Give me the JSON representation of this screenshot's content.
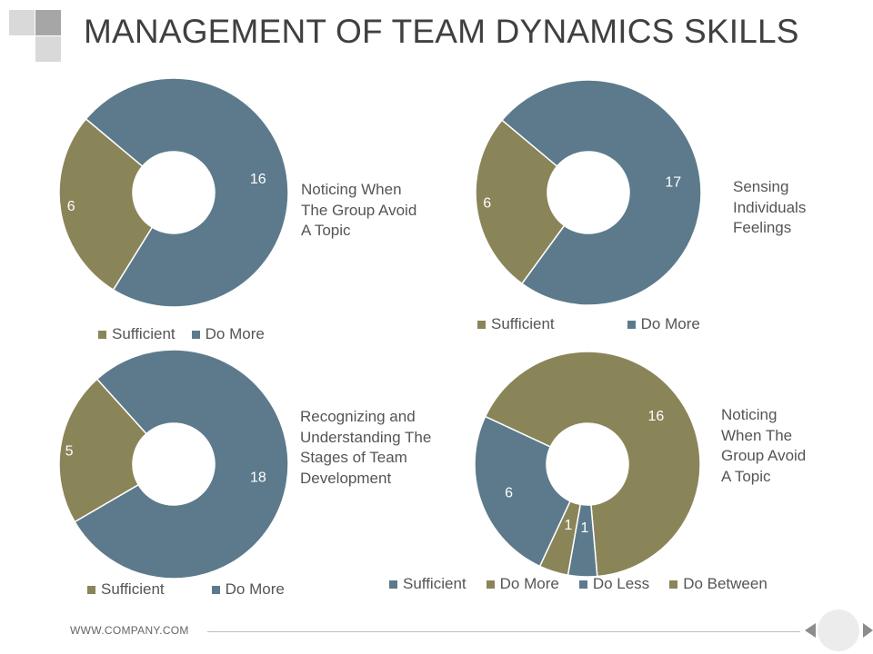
{
  "header": {
    "title": "MANAGEMENT OF TEAM DYNAMICS SKILLS"
  },
  "footer": {
    "website": "WWW.COMPANY.COM"
  },
  "colors": {
    "olive": "#8a8459",
    "slate": "#5c7a8c",
    "deco_dark": "#a6a6a6",
    "deco_light": "#d9d9d9"
  },
  "chart_data": [
    {
      "type": "pie",
      "title": "Noticing When\nThe Group Avoid\nA Topic",
      "categories": [
        "Sufficient",
        "Do More"
      ],
      "values": [
        6,
        16
      ],
      "colors": [
        "#8a8459",
        "#5c7a8c"
      ],
      "legend": "bottom",
      "donut": true
    },
    {
      "type": "pie",
      "title": "Sensing\nIndividuals\nFeelings",
      "categories": [
        "Sufficient",
        "Do More"
      ],
      "values": [
        6,
        17
      ],
      "colors": [
        "#8a8459",
        "#5c7a8c"
      ],
      "legend": "bottom",
      "donut": true
    },
    {
      "type": "pie",
      "title": "Recognizing and\nUnderstanding The\nStages of Team\nDevelopment",
      "categories": [
        "Sufficient",
        "Do More"
      ],
      "values": [
        5,
        18
      ],
      "colors": [
        "#8a8459",
        "#5c7a8c"
      ],
      "legend": "bottom",
      "donut": true
    },
    {
      "type": "pie",
      "title": "Noticing\nWhen The\nGroup Avoid\nA Topic",
      "categories": [
        "Sufficient",
        "Do More",
        "Do Less",
        "Do Between"
      ],
      "values": [
        6,
        16,
        1,
        1
      ],
      "colors": [
        "#5c7a8c",
        "#8a8459",
        "#5c7a8c",
        "#8a8459"
      ],
      "legend": "bottom",
      "donut": true
    }
  ]
}
